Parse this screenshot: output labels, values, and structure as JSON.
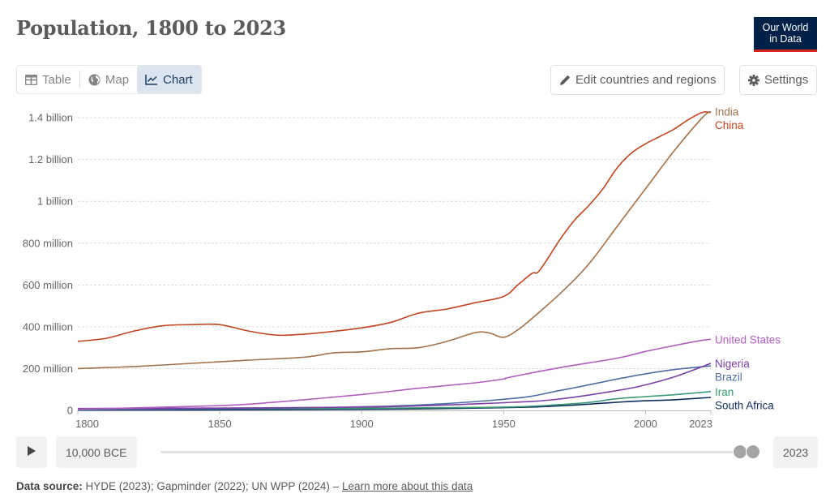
{
  "header": {
    "title": "Population, 1800 to 2023",
    "logo_line1": "Our World",
    "logo_line2": "in Data"
  },
  "tabs": [
    {
      "label": "Table",
      "icon": "table-icon",
      "active": false
    },
    {
      "label": "Map",
      "icon": "globe-icon",
      "active": false
    },
    {
      "label": "Chart",
      "icon": "line-chart-icon",
      "active": true
    }
  ],
  "toolbar": {
    "edit_label": "Edit countries and regions",
    "edit_icon": "pencil-icon",
    "settings_label": "Settings",
    "settings_icon": "gear-icon"
  },
  "timeline": {
    "play_icon": "play-icon",
    "start_label": "10,000 BCE",
    "end_label": "2023",
    "start_handle_position": 0.985,
    "end_handle_position": 1.0
  },
  "footer": {
    "source_label": "Data source:",
    "source_text": "HYDE (2023); Gapminder (2022); UN WPP (2024) –",
    "learn_more": "Learn more about this data"
  },
  "colors": {
    "accent_tab_bg": "#dbe5f0",
    "accent_tab_text": "#1d3d63",
    "logo_bg": "#002147",
    "logo_stripe": "#ce261e"
  },
  "chart_data": {
    "type": "line",
    "title": "Population, 1800 to 2023",
    "xlabel": "",
    "ylabel": "",
    "xlim": [
      1800,
      2023
    ],
    "ylim": [
      0,
      1450000000
    ],
    "grid": true,
    "x_ticks": [
      {
        "value": 1800,
        "label": "1800"
      },
      {
        "value": 1850,
        "label": "1850"
      },
      {
        "value": 1900,
        "label": "1900"
      },
      {
        "value": 1950,
        "label": "1950"
      },
      {
        "value": 2000,
        "label": "2000"
      },
      {
        "value": 2023,
        "label": "2023"
      }
    ],
    "y_ticks": [
      {
        "value": 0,
        "label": "0"
      },
      {
        "value": 200000000,
        "label": "200 million"
      },
      {
        "value": 400000000,
        "label": "400 million"
      },
      {
        "value": 600000000,
        "label": "600 million"
      },
      {
        "value": 800000000,
        "label": "800 million"
      },
      {
        "value": 1000000000,
        "label": "1 billion"
      },
      {
        "value": 1200000000,
        "label": "1.2 billion"
      },
      {
        "value": 1400000000,
        "label": "1.4 billion"
      }
    ],
    "legend": "right-end-labels",
    "series": [
      {
        "name": "India",
        "color": "#a2714a",
        "x": [
          1800,
          1820,
          1840,
          1860,
          1880,
          1890,
          1900,
          1910,
          1920,
          1930,
          1940,
          1945,
          1950,
          1955,
          1960,
          1970,
          1980,
          1990,
          2000,
          2010,
          2020,
          2023
        ],
        "values": [
          200,
          210,
          225,
          240,
          255,
          275,
          280,
          295,
          300,
          330,
          372,
          370,
          350,
          385,
          440,
          560,
          700,
          880,
          1060,
          1240,
          1400,
          1430
        ],
        "unit": "million"
      },
      {
        "name": "China",
        "color": "#c0441f",
        "x": [
          1800,
          1810,
          1820,
          1830,
          1840,
          1850,
          1860,
          1870,
          1880,
          1890,
          1900,
          1910,
          1920,
          1930,
          1940,
          1950,
          1955,
          1960,
          1962,
          1965,
          1970,
          1975,
          1980,
          1985,
          1990,
          1995,
          2000,
          2005,
          2010,
          2015,
          2020,
          2023
        ],
        "values": [
          330,
          345,
          380,
          405,
          410,
          410,
          380,
          360,
          365,
          378,
          395,
          420,
          465,
          485,
          515,
          545,
          600,
          655,
          660,
          715,
          820,
          910,
          980,
          1060,
          1160,
          1230,
          1275,
          1310,
          1345,
          1390,
          1425,
          1425
        ],
        "unit": "million"
      },
      {
        "name": "United States",
        "color": "#b15ec0",
        "x": [
          1800,
          1850,
          1870,
          1900,
          1920,
          1940,
          1950,
          1952,
          1970,
          1990,
          2000,
          2010,
          2020,
          2023
        ],
        "values": [
          6,
          23,
          40,
          76,
          106,
          132,
          150,
          158,
          205,
          250,
          282,
          310,
          335,
          340
        ],
        "unit": "million"
      },
      {
        "name": "Nigeria",
        "color": "#7b3fa6",
        "x": [
          1800,
          1900,
          1950,
          1970,
          1990,
          2000,
          2010,
          2023
        ],
        "values": [
          9,
          16,
          37,
          55,
          95,
          122,
          160,
          225
        ],
        "unit": "million"
      },
      {
        "name": "Brazil",
        "color": "#4f6ea3",
        "x": [
          1800,
          1900,
          1950,
          1970,
          1990,
          2000,
          2010,
          2023
        ],
        "values": [
          3,
          17,
          53,
          96,
          150,
          175,
          195,
          213
        ],
        "unit": "million"
      },
      {
        "name": "Iran",
        "color": "#3c9a73",
        "x": [
          1800,
          1900,
          1950,
          1970,
          1980,
          1990,
          2000,
          2010,
          2023
        ],
        "values": [
          6,
          10,
          16,
          28,
          38,
          56,
          66,
          75,
          90
        ],
        "unit": "million"
      },
      {
        "name": "South Africa",
        "color": "#0f2d5e",
        "x": [
          1800,
          1900,
          1950,
          1970,
          1990,
          2000,
          2010,
          2023
        ],
        "values": [
          1.5,
          5,
          13,
          22,
          39,
          46,
          51,
          62
        ],
        "unit": "million"
      }
    ]
  }
}
